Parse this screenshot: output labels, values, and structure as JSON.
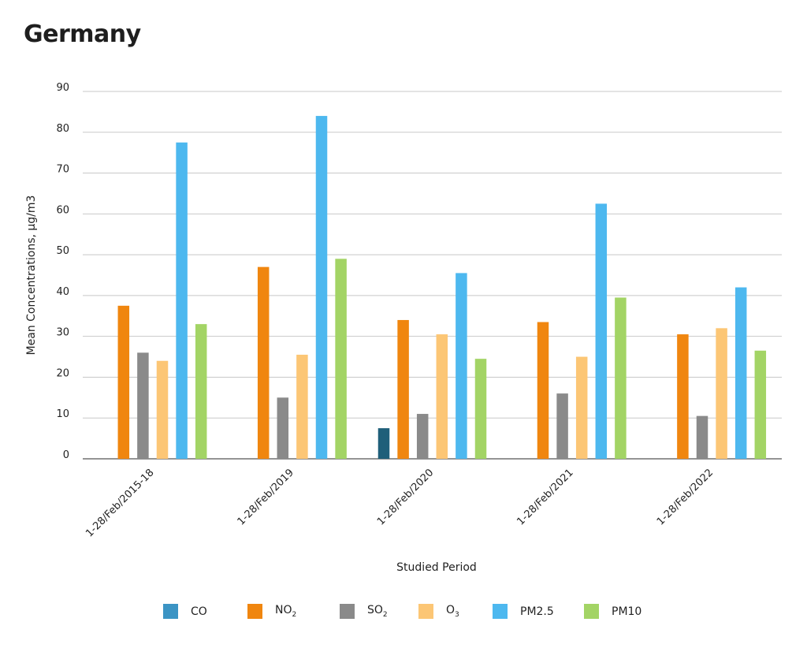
{
  "title": "Germany",
  "chart_data": {
    "type": "bar",
    "title": "Germany",
    "xlabel": "Studied Period",
    "ylabel": "Mean Concentrations, μg/m3",
    "ylim": [
      0,
      90
    ],
    "yticks": [
      0,
      10,
      20,
      30,
      40,
      50,
      60,
      70,
      80,
      90
    ],
    "grid": true,
    "legend_position": "bottom",
    "categories": [
      "1-28/Feb/2015-18",
      "1-28/Feb/2019",
      "1-28/Feb/2020",
      "1-28/Feb/2021",
      "1-28/Feb/2022"
    ],
    "series": [
      {
        "name": "CO",
        "base": "CO",
        "sub": "",
        "color": "#3b94c4",
        "bar_color": "#1f5f7a",
        "values": [
          null,
          null,
          7.5,
          null,
          null
        ]
      },
      {
        "name": "NO2",
        "base": "NO",
        "sub": "2",
        "color": "#f0860f",
        "bar_color": "#f0860f",
        "values": [
          37.5,
          47,
          34,
          33.5,
          30.5
        ]
      },
      {
        "name": "SO2",
        "base": "SO",
        "sub": "2",
        "color": "#8a8a8a",
        "bar_color": "#8a8a8a",
        "values": [
          26,
          15,
          11,
          16,
          10.5
        ]
      },
      {
        "name": "O3",
        "base": "O",
        "sub": "3",
        "color": "#fcc675",
        "bar_color": "#fcc675",
        "values": [
          24,
          25.5,
          30.5,
          25,
          32
        ]
      },
      {
        "name": "PM2.5",
        "base": "PM2.5",
        "sub": "",
        "color": "#4db8ef",
        "bar_color": "#4db8ef",
        "values": [
          77.5,
          84,
          45.5,
          62.5,
          42
        ]
      },
      {
        "name": "PM10",
        "base": "PM10",
        "sub": "",
        "color": "#a3d465",
        "bar_color": "#a3d465",
        "values": [
          33,
          49,
          24.5,
          39.5,
          26.5
        ]
      }
    ]
  }
}
